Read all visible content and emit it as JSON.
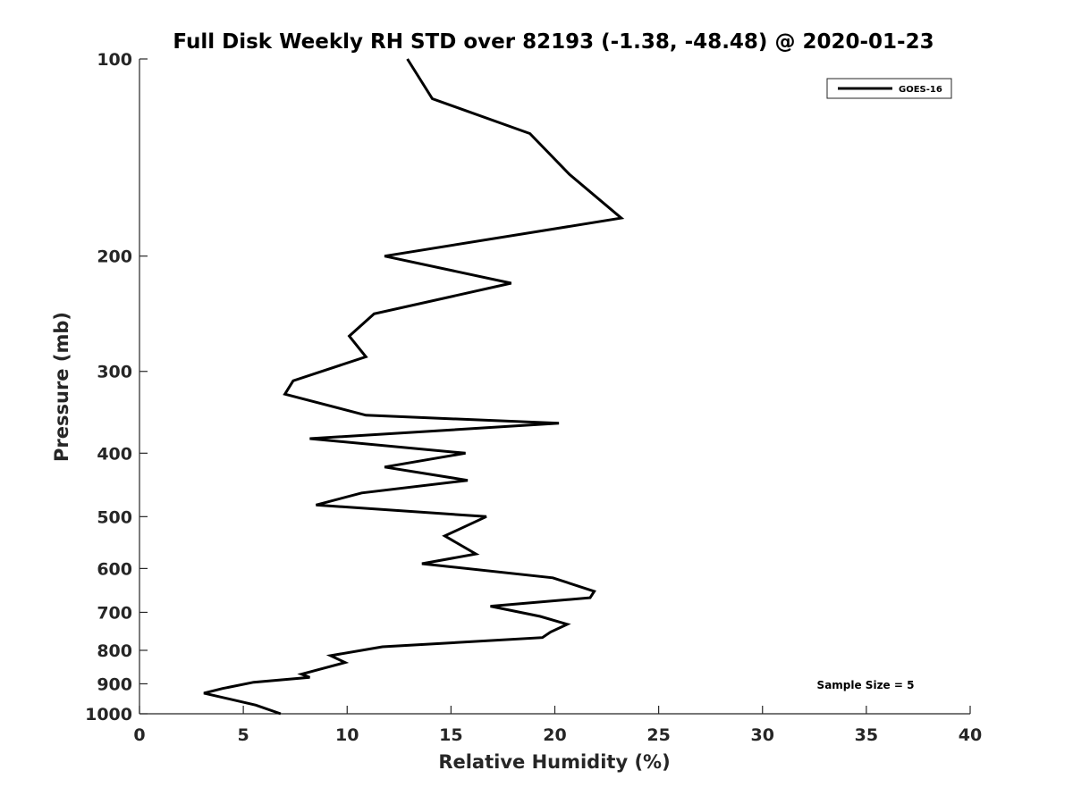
{
  "chart_data": {
    "type": "line",
    "title": "Full Disk Weekly RH STD over 82193 (-1.38, -48.48) @ 2020-01-23",
    "xlabel": "Relative Humidity (%)",
    "ylabel": "Pressure (mb)",
    "xlim": [
      0,
      40
    ],
    "ylim": [
      100,
      1000
    ],
    "yscale": "log",
    "y_reversed": true,
    "grid": false,
    "x_ticks": [
      0,
      5,
      10,
      15,
      20,
      25,
      30,
      35,
      40
    ],
    "x_tick_labels": [
      "0",
      "5",
      "10",
      "15",
      "20",
      "25",
      "30",
      "35",
      "40"
    ],
    "y_ticks": [
      100,
      200,
      300,
      400,
      500,
      600,
      700,
      800,
      900,
      1000
    ],
    "y_tick_labels": [
      "100",
      "200",
      "300",
      "400",
      "500",
      "600",
      "700",
      "800",
      "900",
      "1000"
    ],
    "legend_position": "top-right",
    "series": [
      {
        "name": "GOES-16",
        "color": "#000000",
        "x": [
          12.9,
          14.1,
          18.8,
          20.7,
          23.2,
          11.8,
          17.9,
          11.3,
          10.1,
          10.9,
          7.4,
          7.0,
          10.9,
          20.2,
          8.2,
          15.7,
          11.8,
          15.8,
          10.7,
          8.5,
          16.7,
          14.7,
          16.2,
          13.6,
          19.9,
          21.9,
          21.7,
          16.9,
          19.3,
          20.6,
          19.8,
          19.4,
          11.7,
          9.2,
          9.9,
          8.7,
          7.8,
          8.2,
          5.5,
          4.0,
          3.1,
          5.6,
          6.8
        ],
        "y": [
          100,
          115,
          130,
          150,
          175,
          200,
          220,
          245,
          265,
          285,
          310,
          325,
          350,
          360,
          380,
          400,
          420,
          440,
          460,
          480,
          500,
          535,
          570,
          590,
          620,
          650,
          665,
          685,
          710,
          730,
          750,
          765,
          790,
          815,
          835,
          855,
          870,
          880,
          895,
          915,
          930,
          970,
          1000
        ]
      }
    ],
    "annotations": [
      {
        "text": "Sample Size = 5",
        "position": "bottom-right"
      }
    ]
  }
}
